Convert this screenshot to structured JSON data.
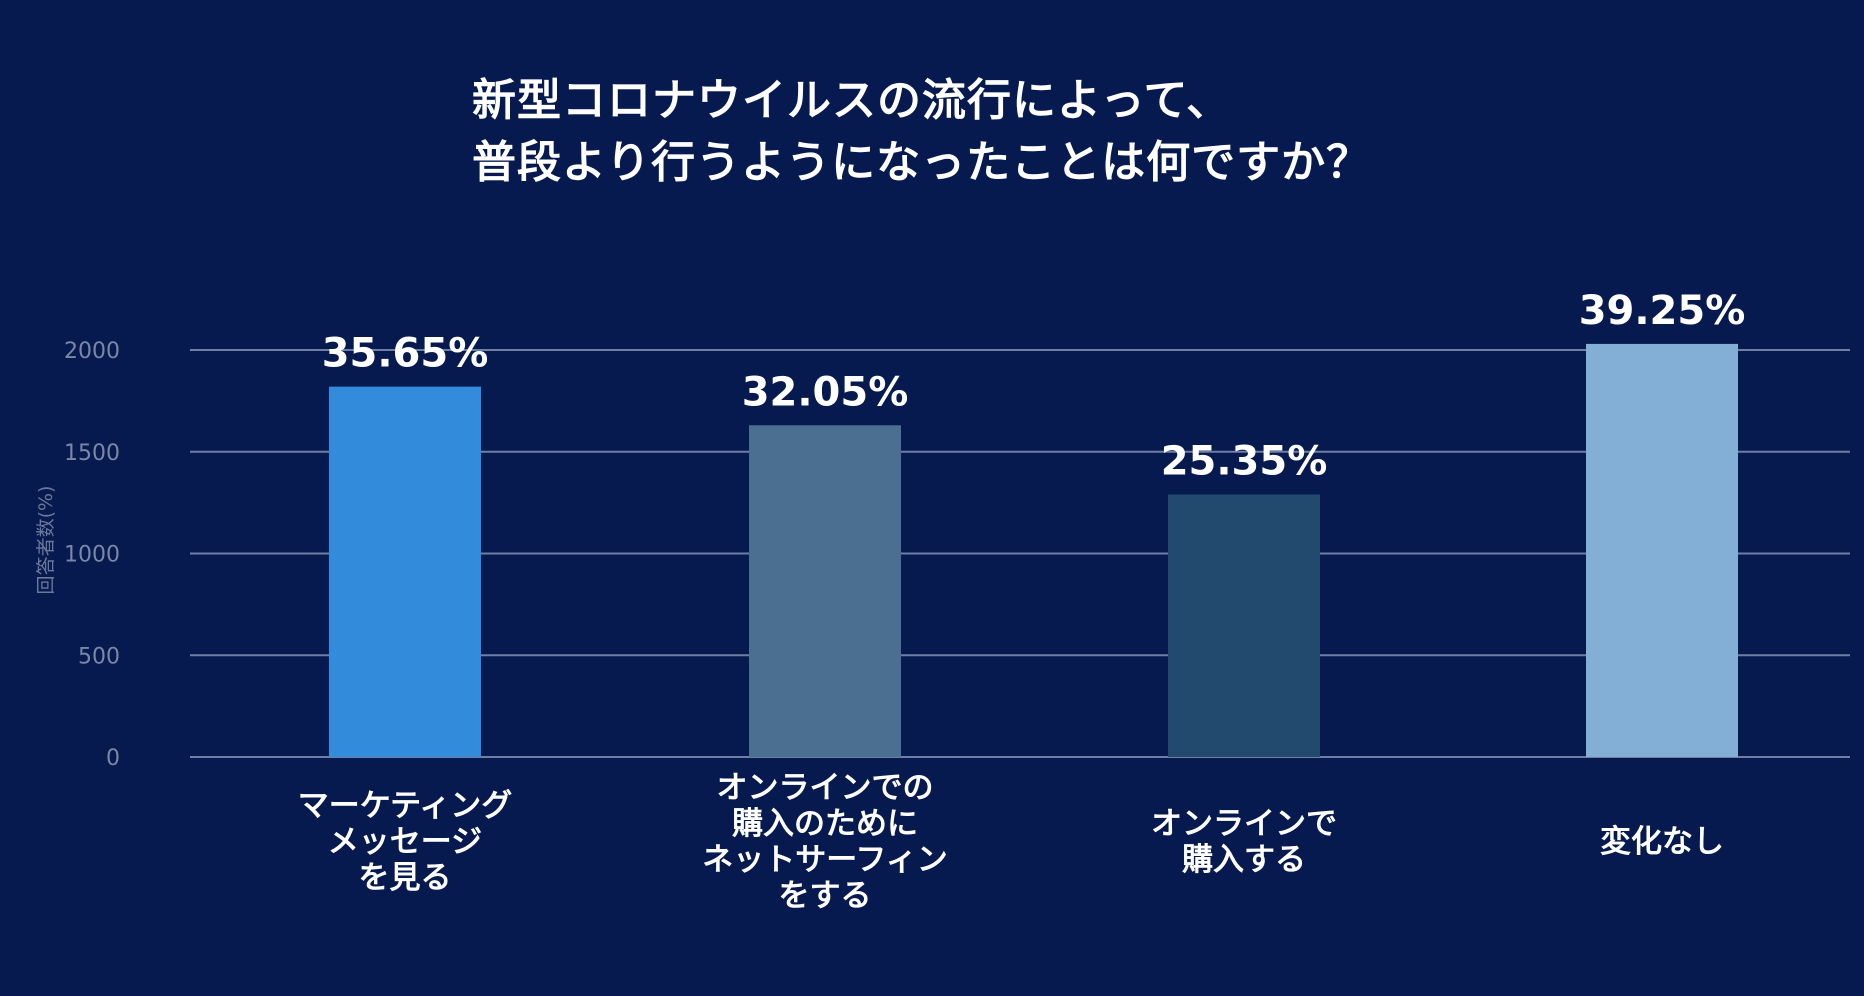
{
  "chart_data": {
    "type": "bar",
    "title_lines": [
      "新型コロナウイルスの流行によって、",
      "普段より行うようになったことは何ですか？"
    ],
    "ylabel": "回答者数(%)",
    "ylim": [
      0,
      2000
    ],
    "yticks": [
      0,
      500,
      1000,
      1500,
      2000
    ],
    "grid": true,
    "categories": [
      [
        "マーケティング",
        "メッセージ",
        "を見る"
      ],
      [
        "オンラインでの",
        "購入のために",
        "ネットサーフィン",
        "をする"
      ],
      [
        "オンラインで",
        "購入する"
      ],
      [
        "変化なし"
      ]
    ],
    "values": [
      1820,
      1630,
      1290,
      2030
    ],
    "labels": [
      "35.65%",
      "32.05%",
      "25.35%",
      "39.25%"
    ],
    "colors": [
      "#338bdc",
      "#4a6f91",
      "#224a6f",
      "#83aed5"
    ]
  },
  "colors": {
    "background": "#071a4f",
    "gridline": "#6f7fa3",
    "tick_text": "#7a87a6",
    "text": "#ffffff"
  }
}
